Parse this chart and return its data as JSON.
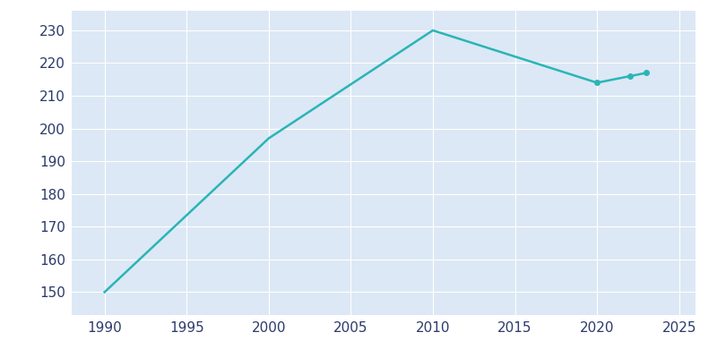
{
  "years": [
    1990,
    2000,
    2010,
    2015,
    2020,
    2022,
    2023
  ],
  "population": [
    150,
    197,
    230,
    222,
    214,
    216,
    217
  ],
  "line_color": "#2ab5b5",
  "marker_color": "#2ab5b5",
  "fig_bg_color": "#ffffff",
  "plot_bg_color": "#dce8f5",
  "xlim": [
    1988,
    2026
  ],
  "ylim": [
    143,
    236
  ],
  "xticks": [
    1990,
    1995,
    2000,
    2005,
    2010,
    2015,
    2020,
    2025
  ],
  "yticks": [
    150,
    160,
    170,
    180,
    190,
    200,
    210,
    220,
    230
  ],
  "marker_years": [
    2020,
    2022,
    2023
  ],
  "grid_color": "#ffffff",
  "tick_label_color": "#2d3a6b",
  "tick_fontsize": 11,
  "linewidth": 1.8
}
